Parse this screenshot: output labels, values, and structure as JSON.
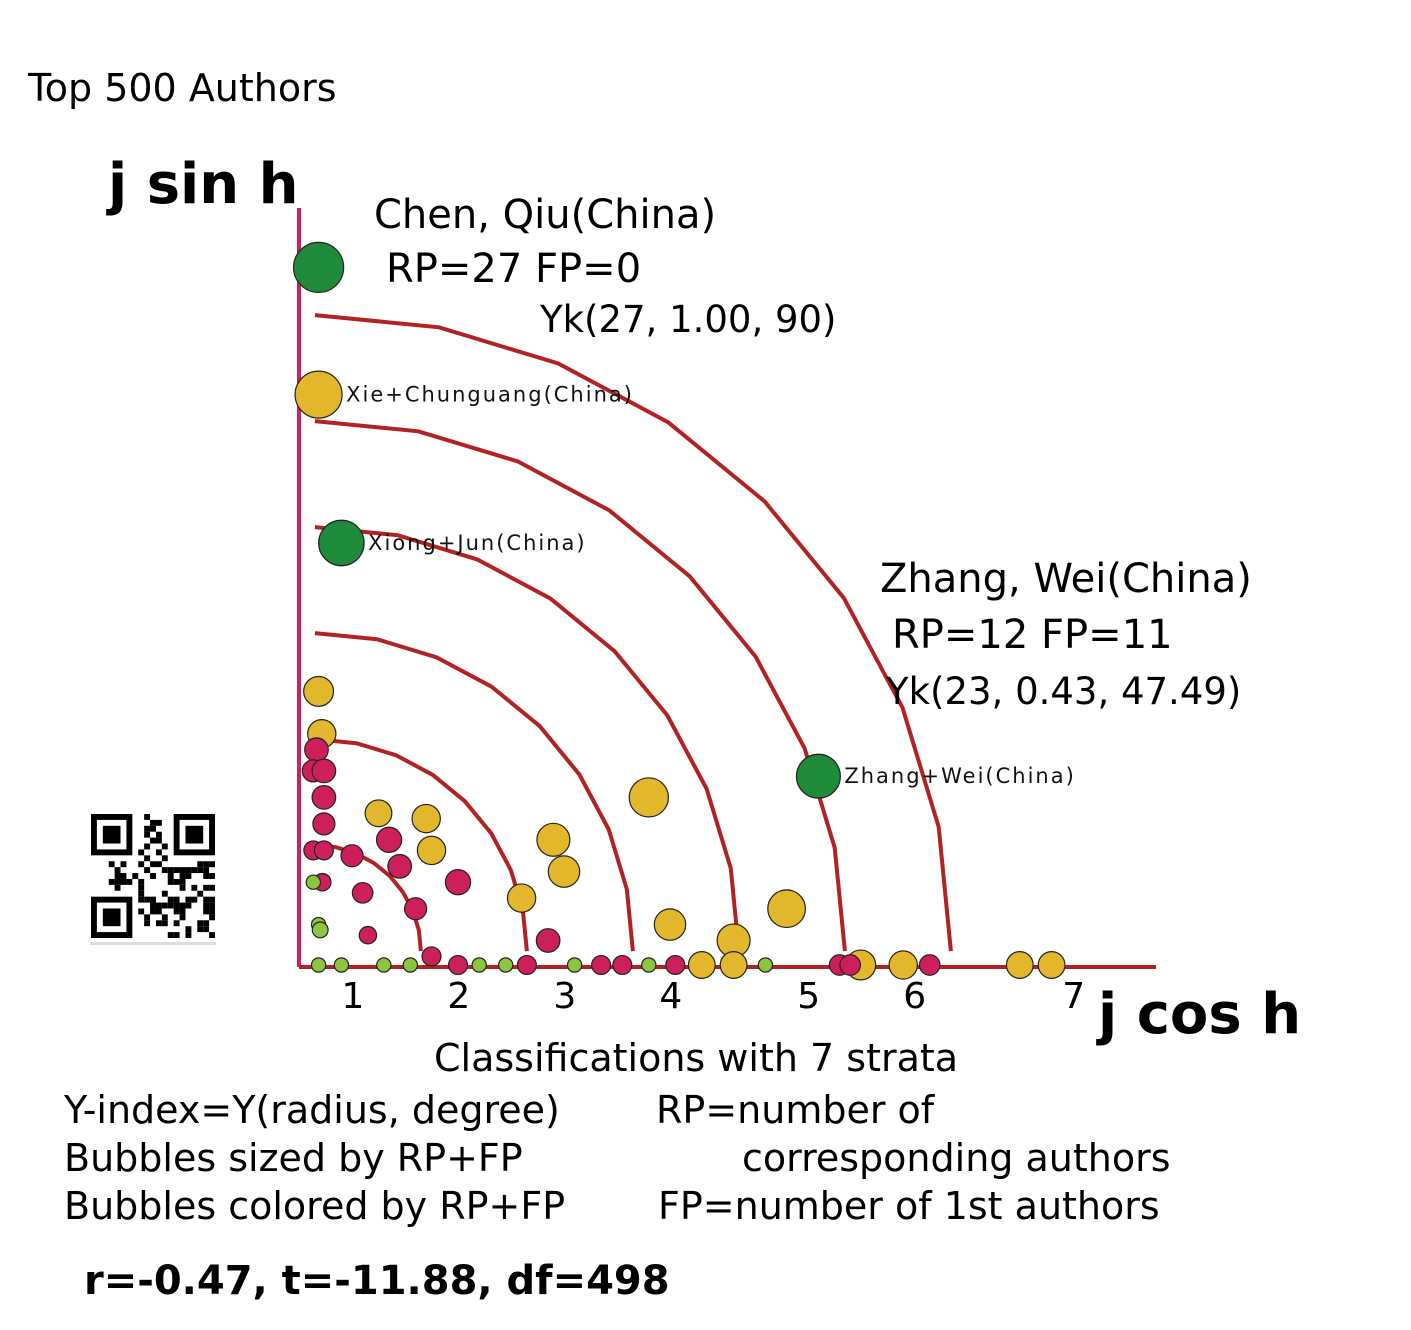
{
  "chart_data": {
    "type": "scatter",
    "title": "Top 500 Authors",
    "ylabel": "j sin h",
    "xlabel": "j cos h",
    "xlim": [
      0,
      8
    ],
    "x_ticks": [
      "1",
      "2",
      "3",
      "4",
      "5",
      "6",
      "7"
    ],
    "x_tick_values": [
      1,
      2,
      3,
      4,
      5,
      6,
      7
    ],
    "colors": {
      "axis": "#cc2060",
      "arc": "#b22222",
      "green": "#1e8a3a",
      "yellow": "#e3b72b",
      "magenta": "#cc1f5c",
      "lime": "#8cc63f"
    },
    "strata_radii": [
      1.0,
      2.0,
      3.0,
      4.0,
      5.0,
      6.0
    ],
    "points": [
      {
        "x": 0.1,
        "y": 6.6,
        "size": 27,
        "color": "green"
      },
      {
        "x": 0.1,
        "y": 5.4,
        "size": 25,
        "color": "yellow"
      },
      {
        "x": 0.4,
        "y": 4.0,
        "size": 24,
        "color": "green"
      },
      {
        "x": 4.9,
        "y": 1.8,
        "size": 23,
        "color": "green"
      },
      {
        "x": 3.3,
        "y": 1.6,
        "size": 20,
        "color": "yellow"
      },
      {
        "x": 4.6,
        "y": 0.55,
        "size": 19,
        "color": "yellow"
      },
      {
        "x": 4.1,
        "y": 0.25,
        "size": 16,
        "color": "yellow"
      },
      {
        "x": 2.4,
        "y": 1.2,
        "size": 16,
        "color": "yellow"
      },
      {
        "x": 2.5,
        "y": 0.9,
        "size": 15,
        "color": "yellow"
      },
      {
        "x": 3.5,
        "y": 0.4,
        "size": 15,
        "color": "yellow"
      },
      {
        "x": 2.1,
        "y": 0.65,
        "size": 13,
        "color": "yellow"
      },
      {
        "x": 1.2,
        "y": 1.4,
        "size": 13,
        "color": "yellow"
      },
      {
        "x": 1.25,
        "y": 1.1,
        "size": 13,
        "color": "yellow"
      },
      {
        "x": 0.75,
        "y": 1.45,
        "size": 12,
        "color": "yellow"
      },
      {
        "x": 0.1,
        "y": 2.6,
        "size": 14,
        "color": "yellow"
      },
      {
        "x": 0.13,
        "y": 2.2,
        "size": 13,
        "color": "yellow"
      },
      {
        "x": 5.3,
        "y": 0.0,
        "size": 14,
        "color": "yellow"
      },
      {
        "x": 5.7,
        "y": 0.0,
        "size": 13,
        "color": "yellow"
      },
      {
        "x": 3.8,
        "y": 0.0,
        "size": 12,
        "color": "yellow"
      },
      {
        "x": 4.1,
        "y": 0.0,
        "size": 12,
        "color": "yellow"
      },
      {
        "x": 6.8,
        "y": 0.0,
        "size": 12,
        "color": "yellow"
      },
      {
        "x": 7.1,
        "y": 0.0,
        "size": 12,
        "color": "yellow"
      },
      {
        "x": 0.08,
        "y": 2.05,
        "size": 10,
        "color": "magenta"
      },
      {
        "x": 0.05,
        "y": 1.85,
        "size": 9,
        "color": "magenta"
      },
      {
        "x": 0.15,
        "y": 1.85,
        "size": 10,
        "color": "magenta"
      },
      {
        "x": 0.15,
        "y": 1.6,
        "size": 10,
        "color": "magenta"
      },
      {
        "x": 0.15,
        "y": 1.35,
        "size": 9,
        "color": "magenta"
      },
      {
        "x": 0.05,
        "y": 1.1,
        "size": 7,
        "color": "magenta"
      },
      {
        "x": 0.15,
        "y": 1.1,
        "size": 7,
        "color": "magenta"
      },
      {
        "x": 0.5,
        "y": 1.05,
        "size": 9,
        "color": "magenta"
      },
      {
        "x": 0.85,
        "y": 1.2,
        "size": 11,
        "color": "magenta"
      },
      {
        "x": 0.95,
        "y": 0.95,
        "size": 10,
        "color": "magenta"
      },
      {
        "x": 1.5,
        "y": 0.8,
        "size": 11,
        "color": "magenta"
      },
      {
        "x": 1.1,
        "y": 0.55,
        "size": 9,
        "color": "magenta"
      },
      {
        "x": 0.6,
        "y": 0.7,
        "size": 8,
        "color": "magenta"
      },
      {
        "x": 0.22,
        "y": 0.8,
        "size": 6,
        "color": "magenta"
      },
      {
        "x": 0.65,
        "y": 0.3,
        "size": 6,
        "color": "magenta"
      },
      {
        "x": 2.35,
        "y": 0.25,
        "size": 10,
        "color": "magenta"
      },
      {
        "x": 1.25,
        "y": 0.1,
        "size": 7,
        "color": "magenta"
      },
      {
        "x": 1.5,
        "y": 0.0,
        "size": 7,
        "color": "magenta"
      },
      {
        "x": 2.15,
        "y": 0.0,
        "size": 7,
        "color": "magenta"
      },
      {
        "x": 2.85,
        "y": 0.0,
        "size": 7,
        "color": "magenta"
      },
      {
        "x": 3.05,
        "y": 0.0,
        "size": 7,
        "color": "magenta"
      },
      {
        "x": 3.55,
        "y": 0.0,
        "size": 7,
        "color": "magenta"
      },
      {
        "x": 5.1,
        "y": 0.0,
        "size": 8,
        "color": "magenta"
      },
      {
        "x": 5.2,
        "y": 0.0,
        "size": 8,
        "color": "magenta"
      },
      {
        "x": 5.95,
        "y": 0.0,
        "size": 8,
        "color": "magenta"
      },
      {
        "x": 0.05,
        "y": 0.8,
        "size": 4,
        "color": "lime"
      },
      {
        "x": 0.1,
        "y": 0.4,
        "size": 4,
        "color": "lime"
      },
      {
        "x": 0.2,
        "y": 0.35,
        "size": 5,
        "color": "lime"
      },
      {
        "x": 0.1,
        "y": 0.0,
        "size": 4,
        "color": "lime"
      },
      {
        "x": 0.4,
        "y": 0.0,
        "size": 4,
        "color": "lime"
      },
      {
        "x": 0.8,
        "y": 0.0,
        "size": 4,
        "color": "lime"
      },
      {
        "x": 1.05,
        "y": 0.0,
        "size": 4,
        "color": "lime"
      },
      {
        "x": 1.7,
        "y": 0.0,
        "size": 4,
        "color": "lime"
      },
      {
        "x": 1.95,
        "y": 0.0,
        "size": 4,
        "color": "lime"
      },
      {
        "x": 2.6,
        "y": 0.0,
        "size": 4,
        "color": "lime"
      },
      {
        "x": 3.3,
        "y": 0.0,
        "size": 4,
        "color": "lime"
      },
      {
        "x": 4.4,
        "y": 0.0,
        "size": 4,
        "color": "lime"
      }
    ],
    "bubble_labels": [
      {
        "text": "Xie+Chunguang(China)",
        "x": 0.1,
        "y": 5.4,
        "size": 25
      },
      {
        "text": "Xiong+Jun(China)",
        "x": 0.4,
        "y": 4.0,
        "size": 24
      },
      {
        "text": "Zhang+Wei(China)",
        "x": 4.9,
        "y": 1.8,
        "size": 23
      }
    ]
  },
  "annotations": {
    "chen_name": "Chen, Qiu(China)",
    "chen_rp_fp": "RP=27 FP=0",
    "chen_yk": "Yk(27, 1.00, 90)",
    "zhang_name": "Zhang, Wei(China)",
    "zhang_rp_fp": "RP=12 FP=11",
    "zhang_yk": "Yk(23, 0.43, 47.49)"
  },
  "footer": {
    "classification": "Classifications with  7 strata",
    "yindex": "Y-index=Y(radius, degree)",
    "sized_by": "Bubbles sized by RP+FP",
    "colored_by": "Bubbles colored by RP+FP",
    "rp_def": "RP=number of",
    "rp_def2": "corresponding authors",
    "fp_def": "FP=number of 1st authors",
    "stats": "r=-0.47, t=-11.88, df=498"
  },
  "qr_icon": "qr-code-icon"
}
